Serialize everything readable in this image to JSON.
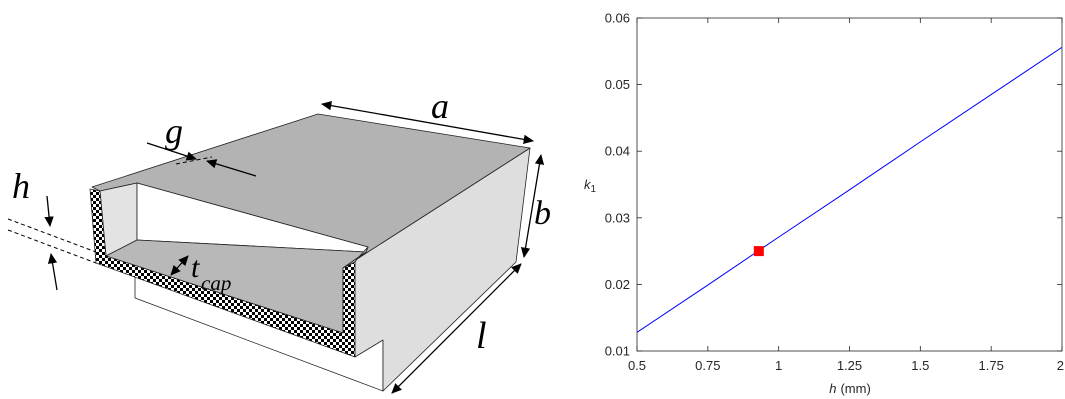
{
  "diagram": {
    "labels": {
      "a": "a",
      "b": "b",
      "g": "g",
      "h": "h",
      "l": "l",
      "t": "t",
      "t_subscript": "cap"
    }
  },
  "chart_data": {
    "type": "line",
    "xlabel": {
      "symbol": "h",
      "unit": "(mm)"
    },
    "ylabel": {
      "symbol": "k",
      "subscript": "1"
    },
    "xlim": [
      0.5,
      2
    ],
    "ylim": [
      0.01,
      0.06
    ],
    "xtick_labels": [
      "0.5",
      "0.75",
      "1",
      "1.25",
      "1.5",
      "1.75",
      "2"
    ],
    "ytick_labels": [
      "0.01",
      "0.02",
      "0.03",
      "0.04",
      "0.05",
      "0.06"
    ],
    "grid": false,
    "series": [
      {
        "x": [
          0.5,
          0.75,
          1,
          1.25,
          1.5,
          1.75,
          2
        ],
        "y": [
          0.0128,
          0.0199,
          0.0271,
          0.0342,
          0.0414,
          0.0485,
          0.0556
        ],
        "color": "#0000ff"
      }
    ],
    "highlighted_points": [
      {
        "x": 0.93,
        "y": 0.025,
        "marker": "square",
        "color": "#ff0000"
      }
    ]
  }
}
